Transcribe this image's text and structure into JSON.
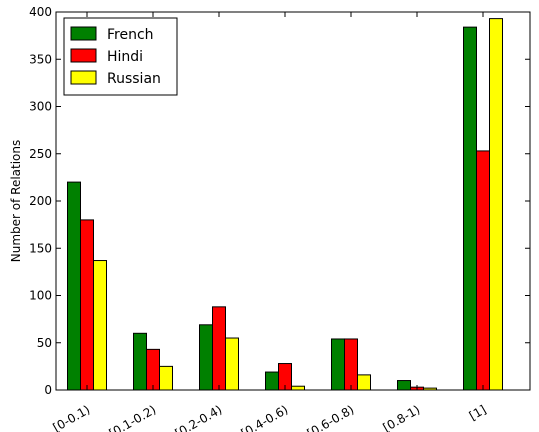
{
  "chart_data": {
    "type": "bar",
    "categories": [
      "[0-0.1)",
      "[0.1-0.2)",
      "[0.2-0.4)",
      "[0.4-0.6)",
      "[0.6-0.8)",
      "[0.8-1)",
      "[1]"
    ],
    "series": [
      {
        "name": "French",
        "color": "#008000",
        "values": [
          220,
          60,
          69,
          19,
          54,
          10,
          384
        ]
      },
      {
        "name": "Hindi",
        "color": "#ff0000",
        "values": [
          180,
          43,
          88,
          28,
          54,
          3,
          253
        ]
      },
      {
        "name": "Russian",
        "color": "#ffff00",
        "values": [
          137,
          25,
          55,
          4,
          16,
          2,
          393
        ]
      }
    ],
    "title": "",
    "xlabel": "",
    "ylabel": "Number of Relations",
    "ylim": [
      0,
      400
    ],
    "yticks": [
      0,
      50,
      100,
      150,
      200,
      250,
      300,
      350,
      400
    ],
    "grid": false,
    "legend_position": "top-left"
  }
}
